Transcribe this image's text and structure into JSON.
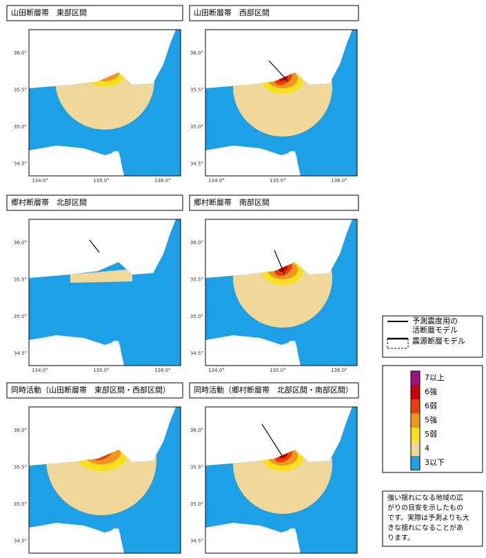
{
  "panels": [
    {
      "title": "山田断層帯　東部区間"
    },
    {
      "title": "山田断層帯　西部区間"
    },
    {
      "title": "郷村断層帯　北部区間"
    },
    {
      "title": "郷村断層帯　南部区間"
    },
    {
      "title": "同時活動（山田断層帯　東部区間・西部区間）"
    },
    {
      "title": "同時活動（郷村断層帯　北部区間・南部区間）"
    }
  ],
  "axes": {
    "lat": [
      "36.0°",
      "35.5°",
      "35.0°",
      "34.5°"
    ],
    "lon": [
      "134.0°",
      "135.0°",
      "136.0°"
    ]
  },
  "legend": {
    "items": [
      {
        "lines": [
          "予測震度用の",
          "活断層モデル"
        ]
      },
      {
        "lines": [
          "震源断層モデル"
        ]
      }
    ]
  },
  "scale": {
    "items": [
      {
        "label": "7以上",
        "color": "#a0117f"
      },
      {
        "label": "6強",
        "color": "#c8000a"
      },
      {
        "label": "6弱",
        "color": "#e8400a"
      },
      {
        "label": "5強",
        "color": "#f0961e"
      },
      {
        "label": "5弱",
        "color": "#f8e01e"
      },
      {
        "label": "4",
        "color": "#f0d79a"
      },
      {
        "label": "3以下",
        "color": "#1ea0e6"
      }
    ]
  },
  "note": [
    "強い揺れになる地域の広",
    "がりの目安を示したもの",
    "です。実際は予測よりも大",
    "きな揺れになることがあ",
    "ります。"
  ]
}
